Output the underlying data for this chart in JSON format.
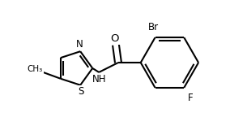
{
  "background_color": "#ffffff",
  "line_color": "#000000",
  "line_width": 1.5,
  "font_size": 8.5,
  "figure_size": [
    2.84,
    1.55
  ],
  "dpi": 100,
  "xlim": [
    0,
    284
  ],
  "ylim": [
    0,
    155
  ]
}
